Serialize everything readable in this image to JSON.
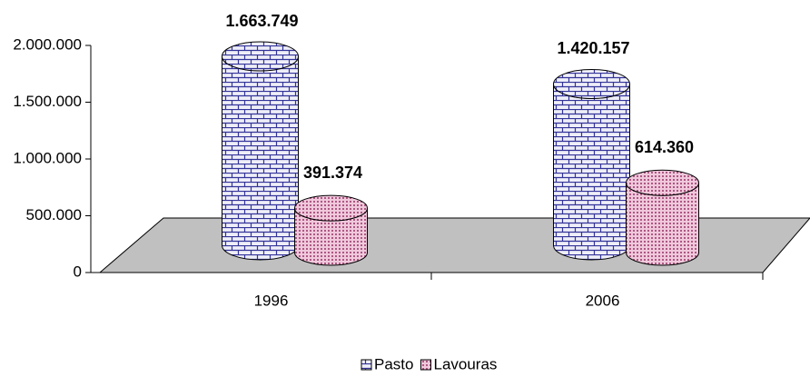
{
  "chart_data": {
    "type": "bar",
    "categories": [
      "1996",
      "2006"
    ],
    "series": [
      {
        "name": "Pasto",
        "color": "#333399",
        "values": [
          1663749,
          1420157
        ],
        "value_labels": [
          "1.663.749",
          "1.420.157"
        ]
      },
      {
        "name": "Lavouras",
        "color": "#993366",
        "values": [
          391374,
          614360
        ],
        "value_labels": [
          "391.374",
          "614.360"
        ]
      }
    ],
    "ylim": [
      0,
      2000000
    ],
    "yticks": [
      0,
      {
        "value": 500000,
        "label": "500.000"
      },
      {
        "value": 1000000,
        "label": "1.000.000"
      },
      {
        "value": 1500000,
        "label": "1.500.000"
      },
      {
        "value": 2000000,
        "label": "2.000.000"
      }
    ],
    "grid": false,
    "legend": "bottom"
  }
}
